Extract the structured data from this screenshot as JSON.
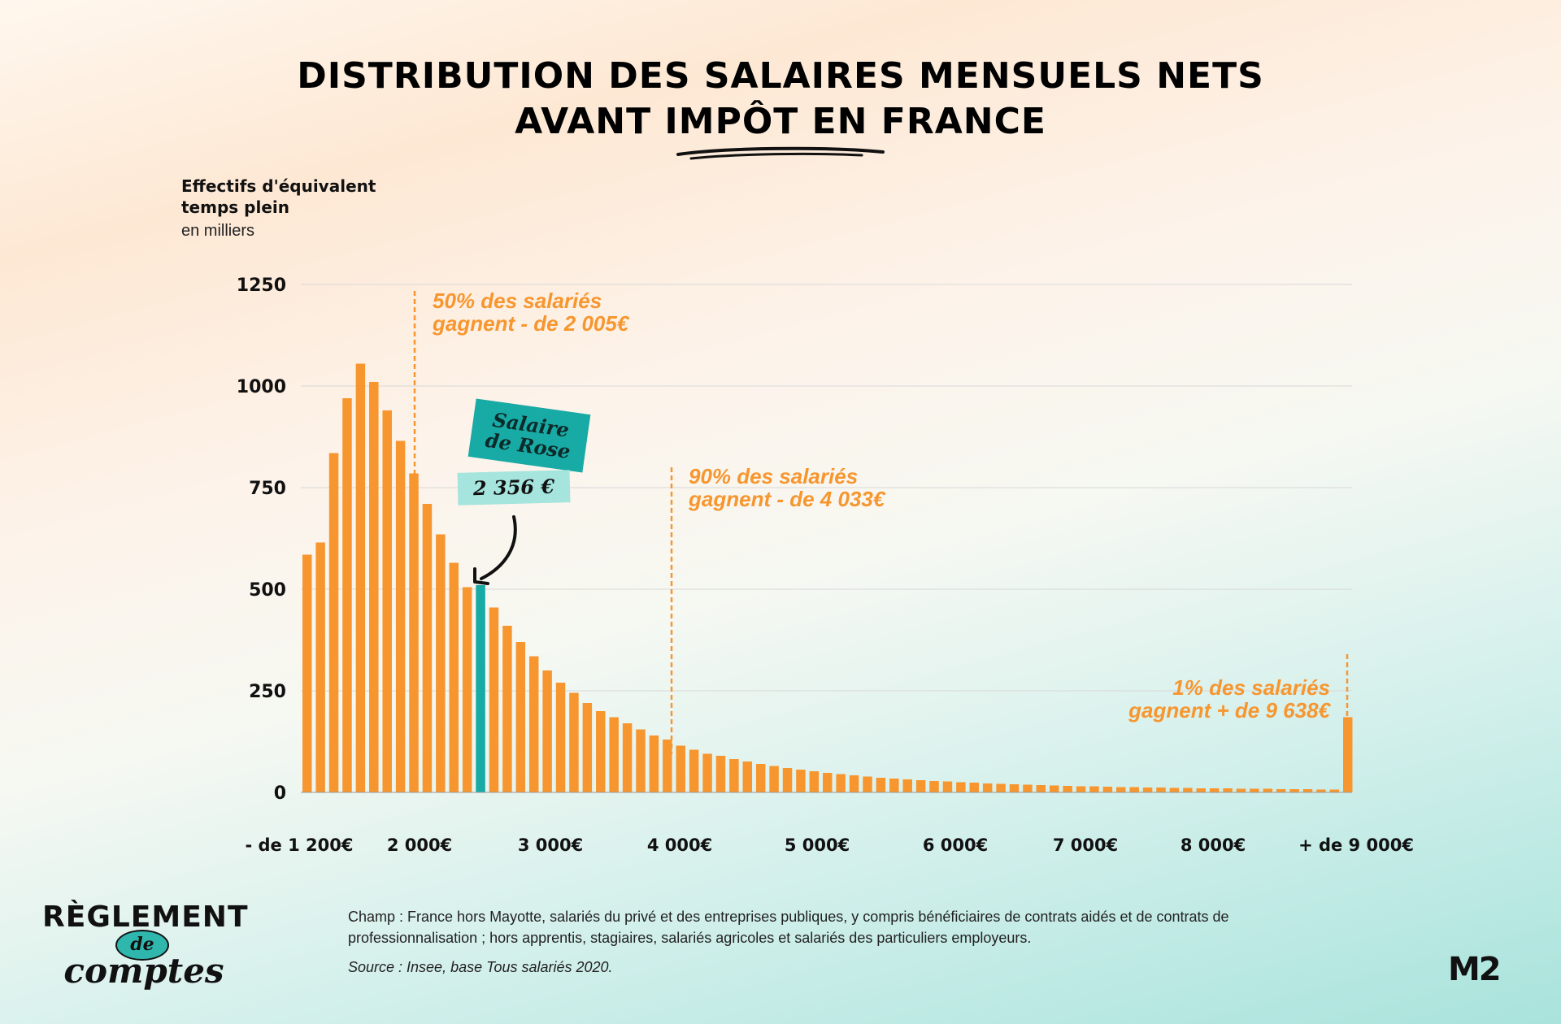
{
  "title": {
    "line1": "DISTRIBUTION DES SALAIRES MENSUELS NETS",
    "line2": "AVANT IMPÔT EN FRANCE"
  },
  "axis": {
    "ylabel_line1": "Effectifs d'équivalent",
    "ylabel_line2": "temps plein",
    "yunit": "en milliers"
  },
  "chart_data": {
    "type": "bar",
    "title": "DISTRIBUTION DES SALAIRES MENSUELS NETS AVANT IMPÔT EN FRANCE",
    "ylabel": "Effectifs d'équivalent temps plein (en milliers)",
    "xlabel": "",
    "ylim": [
      0,
      1250
    ],
    "yticks": [
      0,
      250,
      500,
      750,
      1000,
      1250
    ],
    "xtick_labels": [
      "- de 1 200€",
      "2 000€",
      "3 000€",
      "4 000€",
      "5 000€",
      "6 000€",
      "7 000€",
      "8 000€",
      "+  de 9 000€"
    ],
    "grid": true,
    "highlight_index": 13,
    "colors": {
      "bar": "#f7962f",
      "highlight": "#18aaa4",
      "annotation": "#f7962f"
    },
    "values": [
      585,
      615,
      835,
      970,
      1055,
      1010,
      940,
      865,
      785,
      710,
      635,
      565,
      505,
      510,
      455,
      410,
      370,
      335,
      300,
      270,
      245,
      220,
      200,
      185,
      170,
      155,
      140,
      130,
      115,
      105,
      95,
      90,
      82,
      76,
      70,
      65,
      60,
      56,
      52,
      48,
      45,
      42,
      39,
      36,
      34,
      32,
      30,
      28,
      27,
      25,
      24,
      22,
      21,
      20,
      19,
      18,
      17,
      16,
      15,
      15,
      14,
      13,
      13,
      12,
      12,
      11,
      11,
      10,
      10,
      10,
      9,
      9,
      9,
      8,
      8,
      8,
      7,
      7,
      185
    ]
  },
  "annotations": {
    "median": {
      "line1": "50% des salariés",
      "line2": "gagnent - de 2 005€"
    },
    "d9": {
      "line1": "90% des salariés",
      "line2": "gagnent - de 4 033€"
    },
    "p99": {
      "line1": "1% des salariés",
      "line2": "gagnent + de 9 638€"
    },
    "badge": {
      "line1": "Salaire",
      "line2": "de Rose"
    },
    "value_tag": "2 356  €"
  },
  "footer": {
    "champ": "Champ : France hors Mayotte, salariés du privé et des entreprises publiques, y compris bénéficiaires de contrats aidés et de contrats de professionnalisation ; hors apprentis, stagiaires, salariés agricoles et salariés des particuliers employeurs.",
    "source": "Source : Insee, base Tous salariés 2020."
  },
  "logos": {
    "left_top": "RÈGLEMENT",
    "left_de": "de",
    "left_bottom": "comptes",
    "right": "M2"
  }
}
